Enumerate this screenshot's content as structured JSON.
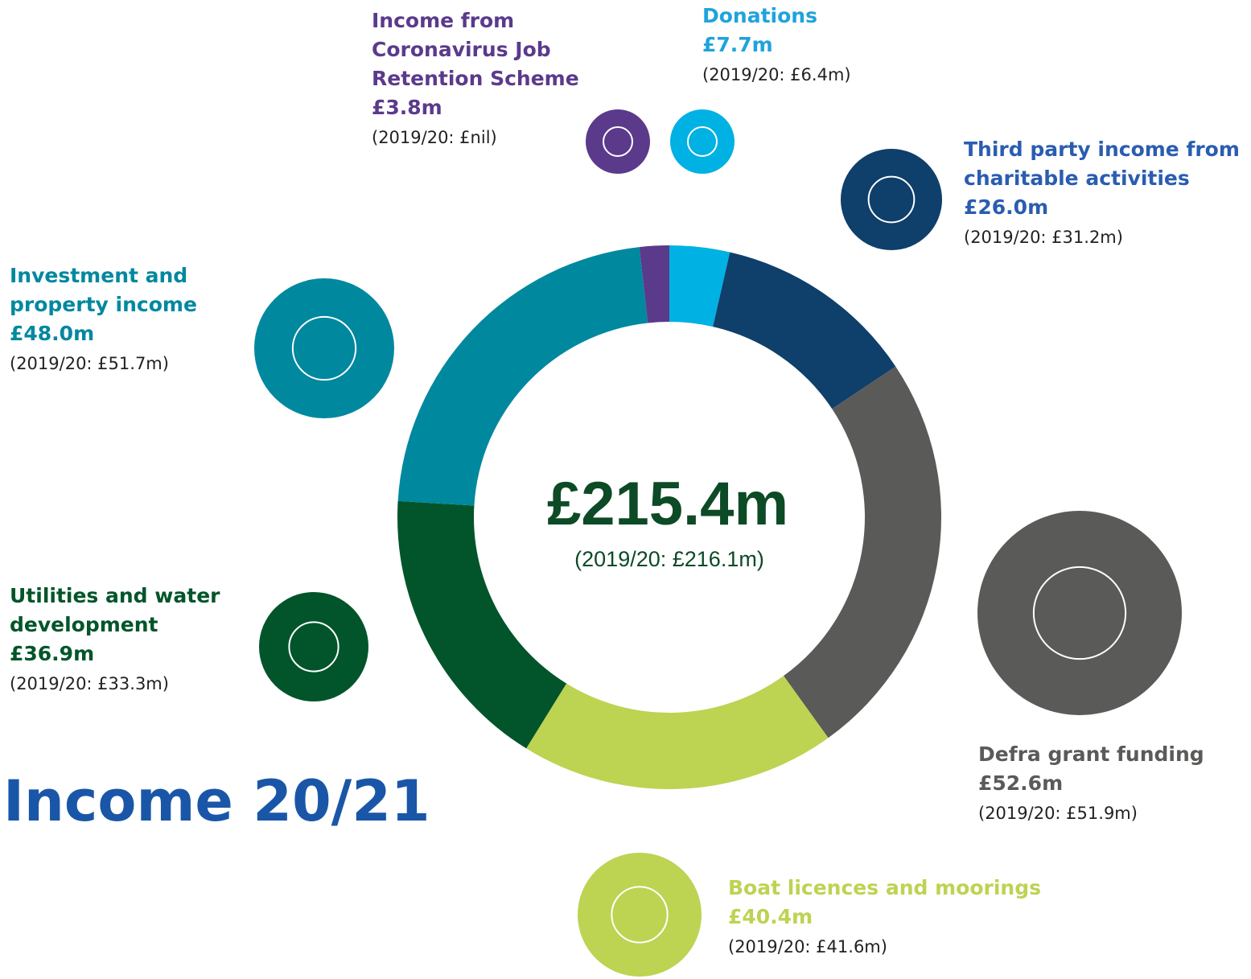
{
  "chart_data": {
    "type": "pie",
    "title": "Income 20/21",
    "center_text": "£215.4m",
    "center_subtext": "(2019/20: £216.1m)",
    "categories": [
      "Income from Coronavirus Job Retention Scheme",
      "Donations",
      "Third party income from charitable activities",
      "Defra grant funding",
      "Boat licences and moorings",
      "Utilities and water development",
      "Investment and property income"
    ],
    "values": [
      3.8,
      7.7,
      26.0,
      52.6,
      40.4,
      36.9,
      48.0
    ],
    "value_labels": [
      "£3.8m",
      "£7.7m",
      "£26.0m",
      "£52.6m",
      "£40.4m",
      "£36.9m",
      "£48.0m"
    ],
    "prior_labels": [
      "(2019/20: £nil)",
      "(2019/20: £6.4m)",
      "(2019/20: £31.2m)",
      "(2019/20: £51.9m)",
      "(2019/20: £41.6m)",
      "(2019/20: £33.3m)",
      "(2019/20: £51.7m)"
    ],
    "colors": [
      "#5b3a8c",
      "#00b1e3",
      "#0f3f6b",
      "#5a5a58",
      "#bdd352",
      "#02552a",
      "#00889f"
    ],
    "label_colors": [
      "#5b3a8c",
      "#1fa3dc",
      "#2a5db0",
      "#5a5a58",
      "#bdd352",
      "#02552a",
      "#00889f"
    ],
    "donut": true
  }
}
